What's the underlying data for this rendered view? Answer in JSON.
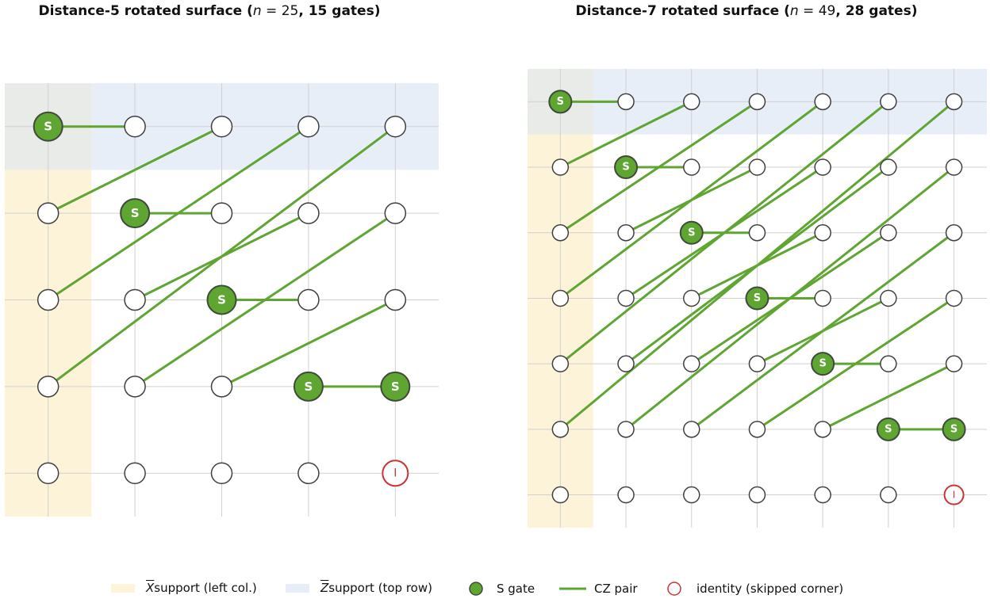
{
  "colors": {
    "x_support": "#fdf3d9",
    "z_support": "#e8eef7",
    "corner": "#e9ebe8",
    "gate_fill": "#5ea532",
    "gate_stroke": "#3f4a3a",
    "cz_line": "#5ea532",
    "qubit_stroke": "#3f3f3f",
    "identity": "#cc3333",
    "grid": "#d0d0d0"
  },
  "panels": [
    {
      "title_prefix": "Distance-5 rotated surface  (",
      "title_var": "n",
      "title_eq": " = 25",
      "title_suffix": ", 15 gates)",
      "distance": 5,
      "gate_label": "S",
      "identity_label": "I",
      "s_gates": [
        [
          0,
          0
        ],
        [
          1,
          1
        ],
        [
          2,
          2
        ],
        [
          3,
          3
        ],
        [
          3,
          4
        ]
      ],
      "identity": [
        4,
        4
      ],
      "cz_pairs": [
        [
          [
            0,
            0
          ],
          [
            0,
            1
          ]
        ],
        [
          [
            1,
            0
          ],
          [
            0,
            2
          ]
        ],
        [
          [
            1,
            1
          ],
          [
            1,
            2
          ]
        ],
        [
          [
            2,
            0
          ],
          [
            0,
            3
          ]
        ],
        [
          [
            2,
            1
          ],
          [
            1,
            3
          ]
        ],
        [
          [
            2,
            2
          ],
          [
            2,
            3
          ]
        ],
        [
          [
            3,
            0
          ],
          [
            0,
            4
          ]
        ],
        [
          [
            3,
            1
          ],
          [
            1,
            4
          ]
        ],
        [
          [
            3,
            2
          ],
          [
            2,
            4
          ]
        ],
        [
          [
            3,
            3
          ],
          [
            3,
            4
          ]
        ]
      ]
    },
    {
      "title_prefix": "Distance-7 rotated surface  (",
      "title_var": "n",
      "title_eq": " = 49",
      "title_suffix": ", 28 gates)",
      "distance": 7,
      "gate_label": "S",
      "identity_label": "I",
      "s_gates": [
        [
          0,
          0
        ],
        [
          1,
          1
        ],
        [
          2,
          2
        ],
        [
          3,
          3
        ],
        [
          4,
          4
        ],
        [
          5,
          5
        ],
        [
          5,
          6
        ]
      ],
      "identity": [
        6,
        6
      ],
      "cz_pairs": [
        [
          [
            0,
            0
          ],
          [
            0,
            1
          ]
        ],
        [
          [
            1,
            0
          ],
          [
            0,
            2
          ]
        ],
        [
          [
            1,
            1
          ],
          [
            1,
            2
          ]
        ],
        [
          [
            2,
            0
          ],
          [
            0,
            3
          ]
        ],
        [
          [
            2,
            1
          ],
          [
            1,
            3
          ]
        ],
        [
          [
            2,
            2
          ],
          [
            2,
            3
          ]
        ],
        [
          [
            3,
            0
          ],
          [
            0,
            4
          ]
        ],
        [
          [
            3,
            1
          ],
          [
            1,
            4
          ]
        ],
        [
          [
            3,
            2
          ],
          [
            2,
            4
          ]
        ],
        [
          [
            3,
            3
          ],
          [
            3,
            4
          ]
        ],
        [
          [
            4,
            0
          ],
          [
            0,
            5
          ]
        ],
        [
          [
            4,
            1
          ],
          [
            1,
            5
          ]
        ],
        [
          [
            4,
            2
          ],
          [
            2,
            5
          ]
        ],
        [
          [
            4,
            3
          ],
          [
            3,
            5
          ]
        ],
        [
          [
            4,
            4
          ],
          [
            4,
            5
          ]
        ],
        [
          [
            5,
            0
          ],
          [
            0,
            6
          ]
        ],
        [
          [
            5,
            1
          ],
          [
            1,
            6
          ]
        ],
        [
          [
            5,
            2
          ],
          [
            2,
            6
          ]
        ],
        [
          [
            5,
            3
          ],
          [
            3,
            6
          ]
        ],
        [
          [
            5,
            4
          ],
          [
            4,
            6
          ]
        ],
        [
          [
            5,
            5
          ],
          [
            5,
            6
          ]
        ]
      ]
    }
  ],
  "legend": {
    "x_support_symbol": "X",
    "x_support_text": " support (left col.)",
    "z_support_symbol": "Z",
    "z_support_text": " support (top row)",
    "s_gate": "S gate",
    "cz_pair": "CZ pair",
    "identity": "identity (skipped corner)"
  }
}
